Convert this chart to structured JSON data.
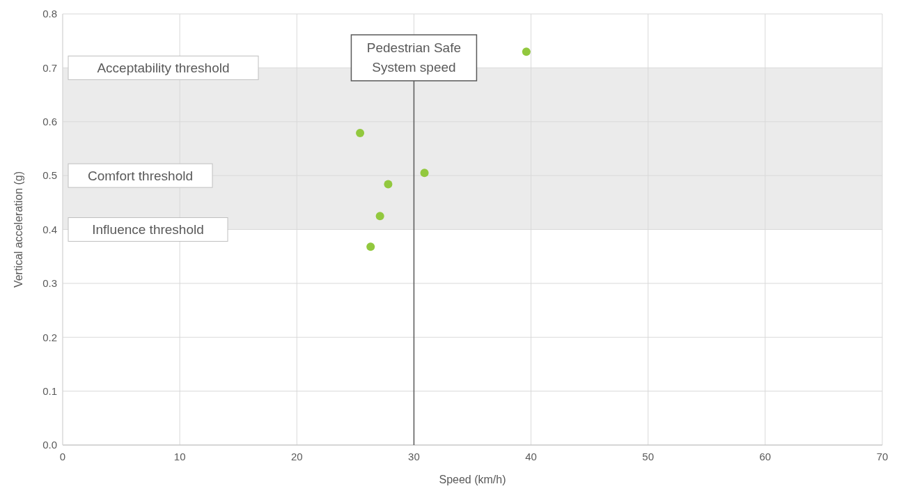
{
  "chart_data": {
    "type": "scatter",
    "xlabel": "Speed (km/h)",
    "ylabel": "Vertical acceleration (g)",
    "x": [
      25.4,
      39.6,
      30.9,
      27.8,
      27.1,
      26.3
    ],
    "series": [
      {
        "color": "#92c83e",
        "values": [
          0.579,
          0.73,
          0.505,
          0.484,
          0.425,
          0.368
        ]
      }
    ],
    "xlim": [
      0,
      70
    ],
    "xticks": [
      0,
      10,
      20,
      30,
      40,
      50,
      60,
      70
    ],
    "ylim": [
      0,
      0.8
    ],
    "yticks": [
      {
        "value": 0,
        "label": "0.0"
      },
      {
        "value": 0.1,
        "label": "0.1"
      },
      {
        "value": 0.2,
        "label": "0.2"
      },
      {
        "value": 0.3,
        "label": "0.3"
      },
      {
        "value": 0.4,
        "label": "0.4"
      },
      {
        "value": 0.5,
        "label": "0.5"
      },
      {
        "value": 0.6,
        "label": "0.6"
      },
      {
        "value": 0.7,
        "label": "0.7"
      },
      {
        "value": 0.8,
        "label": "0.8"
      }
    ],
    "grid": true,
    "marker": "circle",
    "bands": [
      {
        "axis": "y",
        "from": 0.4,
        "to": 0.7,
        "color": "#ebebeb"
      }
    ],
    "annotations": [
      "Acceptability threshold",
      "Comfort threshold",
      "Influence threshold"
    ],
    "ref_lines": [
      {
        "axis": "x",
        "value": 30,
        "label": "Pedestrian Safe System speed",
        "color": "#595959"
      }
    ]
  }
}
